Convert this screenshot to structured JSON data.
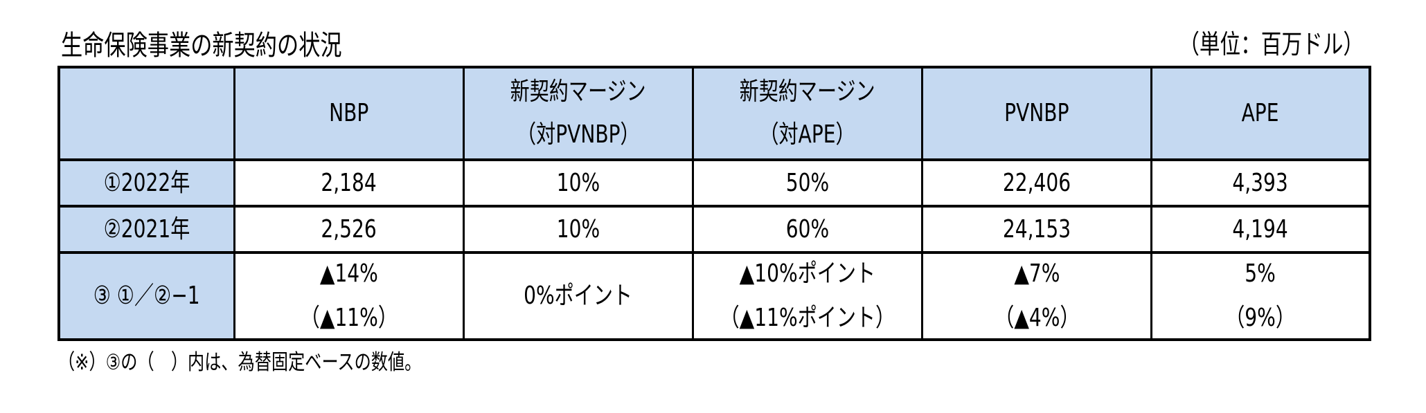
{
  "title": "生命保険事業の新契約の状況",
  "unit": "（単位：百万ドル）",
  "colors": {
    "header_fill": "#c5d9f1",
    "border": "#000000",
    "cell_fill": "#ffffff"
  },
  "table": {
    "headers": [
      {
        "lines": [
          ""
        ]
      },
      {
        "lines": [
          "NBP"
        ]
      },
      {
        "lines": [
          "新契約マージン",
          "（対PVNBP）"
        ]
      },
      {
        "lines": [
          "新契約マージン",
          "（対APE）"
        ]
      },
      {
        "lines": [
          "PVNBP"
        ]
      },
      {
        "lines": [
          "APE"
        ]
      }
    ],
    "rows": [
      {
        "label": "①2022年",
        "cells": [
          {
            "lines": [
              "2,184"
            ]
          },
          {
            "lines": [
              "10%"
            ]
          },
          {
            "lines": [
              "50%"
            ]
          },
          {
            "lines": [
              "22,406"
            ]
          },
          {
            "lines": [
              "4,393"
            ]
          }
        ]
      },
      {
        "label": "②2021年",
        "cells": [
          {
            "lines": [
              "2,526"
            ]
          },
          {
            "lines": [
              "10%"
            ]
          },
          {
            "lines": [
              "60%"
            ]
          },
          {
            "lines": [
              "24,153"
            ]
          },
          {
            "lines": [
              "4,194"
            ]
          }
        ]
      },
      {
        "label": "③ ①／②−1",
        "cells": [
          {
            "lines": [
              "▲14%",
              "（▲11%）"
            ]
          },
          {
            "lines": [
              "0%ポイント"
            ]
          },
          {
            "lines": [
              "▲10%ポイント",
              "（▲11%ポイント）"
            ]
          },
          {
            "lines": [
              "▲7%",
              "（▲4%）"
            ]
          },
          {
            "lines": [
              "5%",
              "（9%）"
            ]
          }
        ]
      }
    ]
  },
  "footnote": "（※）③の（　）内は、為替固定ベースの数値。"
}
